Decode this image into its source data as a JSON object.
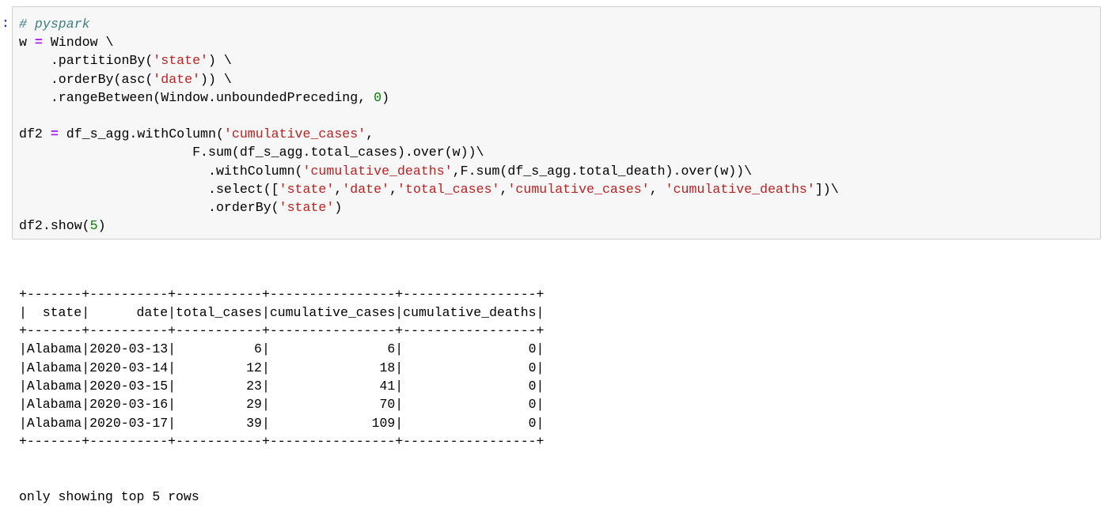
{
  "cell": {
    "prompt": ":",
    "code_lines": [
      [
        [
          "cm",
          "# pyspark"
        ]
      ],
      [
        [
          "n",
          "w "
        ],
        [
          "op",
          "="
        ],
        [
          "n",
          " Window \\"
        ]
      ],
      [
        [
          "n",
          "    .partitionBy("
        ],
        [
          "st",
          "'state'"
        ],
        [
          "n",
          ") \\"
        ]
      ],
      [
        [
          "n",
          "    .orderBy(asc("
        ],
        [
          "st",
          "'date'"
        ],
        [
          "n",
          ")) \\"
        ]
      ],
      [
        [
          "n",
          "    .rangeBetween(Window.unboundedPreceding, "
        ],
        [
          "nu",
          "0"
        ],
        [
          "n",
          ")"
        ]
      ],
      [],
      [
        [
          "n",
          "df2 "
        ],
        [
          "op",
          "="
        ],
        [
          "n",
          " df_s_agg.withColumn("
        ],
        [
          "st",
          "'cumulative_cases'"
        ],
        [
          "n",
          ","
        ]
      ],
      [
        [
          "n",
          "                      F.sum(df_s_agg.total_cases).over(w))\\"
        ]
      ],
      [
        [
          "n",
          "                        .withColumn("
        ],
        [
          "st",
          "'cumulative_deaths'"
        ],
        [
          "n",
          ",F.sum(df_s_agg.total_death).over(w))\\"
        ]
      ],
      [
        [
          "n",
          "                        .select(["
        ],
        [
          "st",
          "'state'"
        ],
        [
          "n",
          ","
        ],
        [
          "st",
          "'date'"
        ],
        [
          "n",
          ","
        ],
        [
          "st",
          "'total_cases'"
        ],
        [
          "n",
          ","
        ],
        [
          "st",
          "'cumulative_cases'"
        ],
        [
          "n",
          ", "
        ],
        [
          "st",
          "'cumulative_deaths'"
        ],
        [
          "n",
          "])\\"
        ]
      ],
      [
        [
          "n",
          "                        .orderBy("
        ],
        [
          "st",
          "'state'"
        ],
        [
          "n",
          ")"
        ]
      ],
      [
        [
          "n",
          "df2.show("
        ],
        [
          "nu",
          "5"
        ],
        [
          "n",
          ")"
        ]
      ]
    ]
  },
  "output": {
    "columns": [
      "state",
      "date",
      "total_cases",
      "cumulative_cases",
      "cumulative_deaths"
    ],
    "rows": [
      [
        "Alabama",
        "2020-03-13",
        "6",
        "6",
        "0"
      ],
      [
        "Alabama",
        "2020-03-14",
        "12",
        "18",
        "0"
      ],
      [
        "Alabama",
        "2020-03-15",
        "23",
        "41",
        "0"
      ],
      [
        "Alabama",
        "2020-03-16",
        "29",
        "70",
        "0"
      ],
      [
        "Alabama",
        "2020-03-17",
        "39",
        "109",
        "0"
      ]
    ],
    "footer": "only showing top 5 rows"
  }
}
